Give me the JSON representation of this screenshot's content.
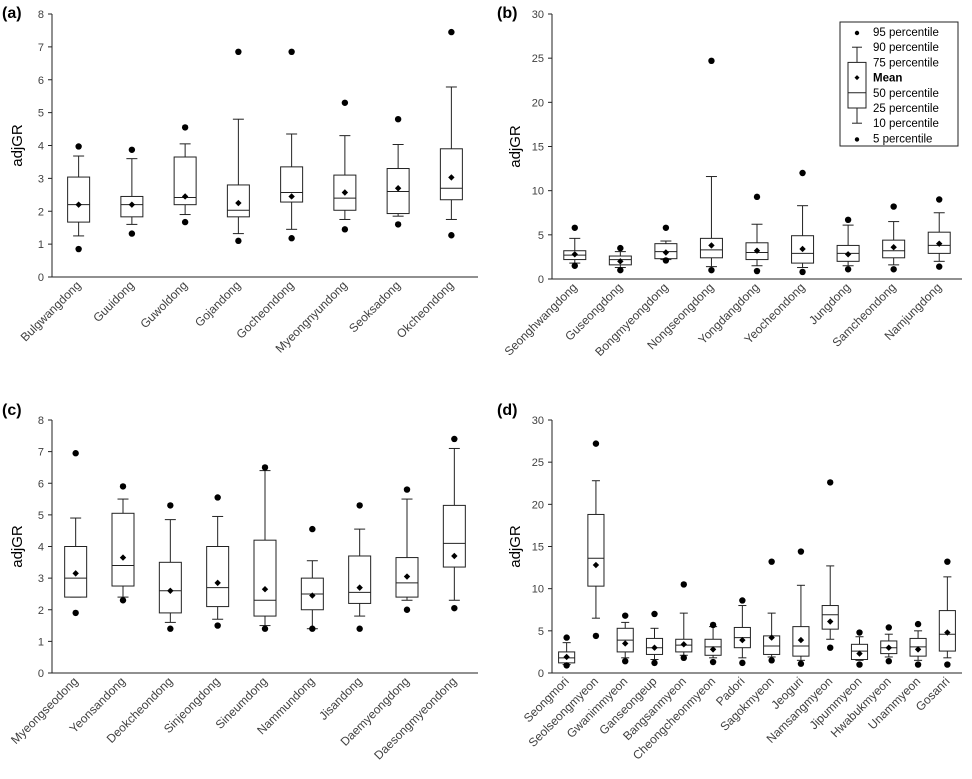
{
  "chart_data": [
    {
      "type": "box",
      "panel_label": "(a)",
      "ylabel": "adjGR",
      "ylim": [
        0,
        8
      ],
      "yticks": [
        0,
        1,
        2,
        3,
        4,
        5,
        6,
        7,
        8
      ],
      "categories": [
        "Bulgwangdong",
        "Guuidong",
        "Guwoldong",
        "Gojandong",
        "Gocheondong",
        "Myeongnyundong",
        "Seoksadong",
        "Okcheondong"
      ],
      "series": [
        {
          "category": "Bulgwangdong",
          "p5": 0.85,
          "p10": 1.25,
          "p25": 1.67,
          "median": 2.2,
          "p75": 3.04,
          "p90": 3.68,
          "p95": 3.97,
          "mean": 2.2
        },
        {
          "category": "Guuidong",
          "p5": 1.32,
          "p10": 1.6,
          "p25": 1.83,
          "median": 2.2,
          "p75": 2.45,
          "p90": 3.6,
          "p95": 3.87,
          "mean": 2.2
        },
        {
          "category": "Guwoldong",
          "p5": 1.67,
          "p10": 1.9,
          "p25": 2.2,
          "median": 2.42,
          "p75": 3.65,
          "p90": 4.05,
          "p95": 4.55,
          "mean": 2.45
        },
        {
          "category": "Gojandong",
          "p5": 1.1,
          "p10": 1.32,
          "p25": 1.83,
          "median": 2.03,
          "p75": 2.8,
          "p90": 4.8,
          "p95": 6.85,
          "mean": 2.25
        },
        {
          "category": "Gocheondong",
          "p5": 1.18,
          "p10": 1.45,
          "p25": 2.28,
          "median": 2.57,
          "p75": 3.35,
          "p90": 4.35,
          "p95": 6.85,
          "mean": 2.45
        },
        {
          "category": "Myeongnyundong",
          "p5": 1.45,
          "p10": 1.75,
          "p25": 2.03,
          "median": 2.4,
          "p75": 3.1,
          "p90": 4.3,
          "p95": 5.3,
          "mean": 2.57
        },
        {
          "category": "Seoksadong",
          "p5": 1.6,
          "p10": 1.85,
          "p25": 1.93,
          "median": 2.6,
          "p75": 3.3,
          "p90": 4.03,
          "p95": 4.8,
          "mean": 2.7
        },
        {
          "category": "Okcheondong",
          "p5": 1.27,
          "p10": 1.75,
          "p25": 2.35,
          "median": 2.7,
          "p75": 3.9,
          "p90": 5.78,
          "p95": 7.45,
          "mean": 3.03
        }
      ]
    },
    {
      "type": "box",
      "panel_label": "(b)",
      "ylabel": "adjGR",
      "ylim": [
        0,
        30
      ],
      "yticks": [
        0,
        5,
        10,
        15,
        20,
        25,
        30
      ],
      "categories": [
        "Seonghwangdong",
        "Guseongdong",
        "Bongmyeongdong",
        "Nongseongdong",
        "Yongdangdong",
        "Yeocheondong",
        "Jungdong",
        "Samcheondong",
        "Namjungdong"
      ],
      "series": [
        {
          "category": "Seonghwangdong",
          "p5": 1.5,
          "p10": 1.8,
          "p25": 2.2,
          "median": 2.7,
          "p75": 3.2,
          "p90": 4.6,
          "p95": 5.8,
          "mean": 2.8
        },
        {
          "category": "Guseongdong",
          "p5": 1.0,
          "p10": 1.3,
          "p25": 1.6,
          "median": 2.2,
          "p75": 2.6,
          "p90": 3.1,
          "p95": 3.5,
          "mean": 2.0
        },
        {
          "category": "Bongmyeongdong",
          "p5": 2.1,
          "p10": 2.2,
          "p25": 2.3,
          "median": 3.1,
          "p75": 4.0,
          "p90": 4.3,
          "p95": 5.8,
          "mean": 3.0
        },
        {
          "category": "Nongseongdong",
          "p5": 1.0,
          "p10": 1.4,
          "p25": 2.4,
          "median": 3.3,
          "p75": 4.6,
          "p90": 11.6,
          "p95": 24.7,
          "mean": 3.8
        },
        {
          "category": "Yongdangdong",
          "p5": 0.9,
          "p10": 1.5,
          "p25": 2.2,
          "median": 3.0,
          "p75": 4.1,
          "p90": 6.2,
          "p95": 9.3,
          "mean": 3.2
        },
        {
          "category": "Yeocheondong",
          "p5": 0.8,
          "p10": 1.3,
          "p25": 1.8,
          "median": 2.9,
          "p75": 4.9,
          "p90": 8.3,
          "p95": 12.0,
          "mean": 3.4
        },
        {
          "category": "Jungdong",
          "p5": 1.1,
          "p10": 1.5,
          "p25": 2.0,
          "median": 2.9,
          "p75": 3.8,
          "p90": 6.1,
          "p95": 6.7,
          "mean": 2.8
        },
        {
          "category": "Samcheondong",
          "p5": 1.1,
          "p10": 1.6,
          "p25": 2.4,
          "median": 3.2,
          "p75": 4.4,
          "p90": 6.5,
          "p95": 8.2,
          "mean": 3.6
        },
        {
          "category": "Namjungdong",
          "p5": 1.4,
          "p10": 2.0,
          "p25": 2.9,
          "median": 3.8,
          "p75": 5.3,
          "p90": 7.5,
          "p95": 9.0,
          "mean": 4.0
        }
      ],
      "legend": {
        "position": "top-right",
        "entries": [
          "95 percentile",
          "90 percentile",
          "75 percentile",
          "Mean",
          "50 percentile",
          "25 percentile",
          "10 percentile",
          "5 percentile"
        ]
      }
    },
    {
      "type": "box",
      "panel_label": "(c)",
      "ylabel": "adjGR",
      "ylim": [
        0,
        8
      ],
      "yticks": [
        0,
        1,
        2,
        3,
        4,
        5,
        6,
        7,
        8
      ],
      "categories": [
        "Myeongseodong",
        "Yeonsandong",
        "Deokcheondong",
        "Sinjeongdong",
        "Sineumdong",
        "Nammundong",
        "Jisandong",
        "Daemyeongdong",
        "Daesongmyeondong"
      ],
      "series": [
        {
          "category": "Myeongseodong",
          "p5": 1.9,
          "p10": 2.4,
          "p25": 2.4,
          "median": 3.0,
          "p75": 4.0,
          "p90": 4.9,
          "p95": 6.95,
          "mean": 3.15
        },
        {
          "category": "Yeonsandong",
          "p5": 2.3,
          "p10": 2.4,
          "p25": 2.75,
          "median": 3.4,
          "p75": 5.05,
          "p90": 5.5,
          "p95": 5.9,
          "mean": 3.65
        },
        {
          "category": "Deokcheondong",
          "p5": 1.4,
          "p10": 1.6,
          "p25": 1.9,
          "median": 2.6,
          "p75": 3.5,
          "p90": 4.85,
          "p95": 5.3,
          "mean": 2.6
        },
        {
          "category": "Sinjeongdong",
          "p5": 1.5,
          "p10": 1.7,
          "p25": 2.1,
          "median": 2.7,
          "p75": 4.0,
          "p90": 4.95,
          "p95": 5.55,
          "mean": 2.85
        },
        {
          "category": "Sineumdong",
          "p5": 1.4,
          "p10": 1.5,
          "p25": 1.8,
          "median": 2.3,
          "p75": 4.2,
          "p90": 6.4,
          "p95": 6.5,
          "mean": 2.65
        },
        {
          "category": "Nammundong",
          "p5": 1.4,
          "p10": 1.4,
          "p25": 2.0,
          "median": 2.5,
          "p75": 3.0,
          "p90": 3.55,
          "p95": 4.55,
          "mean": 2.45
        },
        {
          "category": "Jisandong",
          "p5": 1.4,
          "p10": 1.8,
          "p25": 2.2,
          "median": 2.55,
          "p75": 3.7,
          "p90": 4.55,
          "p95": 5.3,
          "mean": 2.7
        },
        {
          "category": "Daemyeongdong",
          "p5": 2.0,
          "p10": 2.3,
          "p25": 2.4,
          "median": 2.85,
          "p75": 3.65,
          "p90": 5.5,
          "p95": 5.8,
          "mean": 3.05
        },
        {
          "category": "Daesongmyeondong",
          "p5": 2.05,
          "p10": 2.3,
          "p25": 3.35,
          "median": 4.1,
          "p75": 5.3,
          "p90": 7.1,
          "p95": 7.4,
          "mean": 3.7
        }
      ]
    },
    {
      "type": "box",
      "panel_label": "(d)",
      "ylabel": "adjGR",
      "ylim": [
        0,
        30
      ],
      "yticks": [
        0,
        5,
        10,
        15,
        20,
        25,
        30
      ],
      "categories": [
        "Seongmori",
        "Seolseongmyeon",
        "Gwanimmyeon",
        "Ganseongeup",
        "Bangsanmyeon",
        "Cheongcheonmyeon",
        "Padori",
        "Sagokmyeon",
        "Jeoguri",
        "Namsangmyeon",
        "Jipummyeon",
        "Hwabukmyeon",
        "Unammyeon",
        "Gosanri"
      ],
      "series": [
        {
          "category": "Seongmori",
          "p5": 0.9,
          "p10": 1.0,
          "p25": 1.2,
          "median": 1.8,
          "p75": 2.5,
          "p90": 3.6,
          "p95": 4.2,
          "mean": 1.9
        },
        {
          "category": "Seolseongmyeon",
          "p5": 4.4,
          "p10": 6.5,
          "p25": 10.3,
          "median": 13.6,
          "p75": 18.8,
          "p90": 22.8,
          "p95": 27.2,
          "mean": 12.8
        },
        {
          "category": "Gwanimmyeon",
          "p5": 1.4,
          "p10": 1.8,
          "p25": 2.5,
          "median": 3.9,
          "p75": 5.3,
          "p90": 6.0,
          "p95": 6.8,
          "mean": 3.5
        },
        {
          "category": "Ganseongeup",
          "p5": 1.2,
          "p10": 1.6,
          "p25": 2.2,
          "median": 3.0,
          "p75": 4.1,
          "p90": 5.3,
          "p95": 7.0,
          "mean": 3.0
        },
        {
          "category": "Bangsanmyeon",
          "p5": 1.8,
          "p10": 2.1,
          "p25": 2.5,
          "median": 3.3,
          "p75": 4.0,
          "p90": 7.1,
          "p95": 10.5,
          "mean": 3.4
        },
        {
          "category": "Cheongcheonmyeon",
          "p5": 1.3,
          "p10": 1.8,
          "p25": 2.1,
          "median": 3.1,
          "p75": 4.0,
          "p90": 5.5,
          "p95": 5.7,
          "mean": 2.8
        },
        {
          "category": "Padori",
          "p5": 1.2,
          "p10": 1.8,
          "p25": 3.0,
          "median": 4.2,
          "p75": 5.4,
          "p90": 8.0,
          "p95": 8.6,
          "mean": 3.9
        },
        {
          "category": "Sagokmyeon",
          "p5": 1.5,
          "p10": 1.9,
          "p25": 2.2,
          "median": 3.2,
          "p75": 4.4,
          "p90": 7.1,
          "p95": 13.2,
          "mean": 4.2
        },
        {
          "category": "Jeoguri",
          "p5": 1.1,
          "p10": 1.5,
          "p25": 2.0,
          "median": 3.2,
          "p75": 5.5,
          "p90": 10.4,
          "p95": 14.4,
          "mean": 3.9
        },
        {
          "category": "Namsangmyeon",
          "p5": 3.0,
          "p10": 4.0,
          "p25": 5.2,
          "median": 6.9,
          "p75": 8.0,
          "p90": 12.7,
          "p95": 22.6,
          "mean": 6.1
        },
        {
          "category": "Jipummyeon",
          "p5": 1.0,
          "p10": 1.5,
          "p25": 1.6,
          "median": 2.6,
          "p75": 3.4,
          "p90": 4.3,
          "p95": 4.8,
          "mean": 2.3
        },
        {
          "category": "Hwabukmyeon",
          "p5": 1.4,
          "p10": 1.9,
          "p25": 2.3,
          "median": 3.0,
          "p75": 3.8,
          "p90": 4.6,
          "p95": 5.4,
          "mean": 3.0
        },
        {
          "category": "Unammyeon",
          "p5": 1.0,
          "p10": 1.5,
          "p25": 2.0,
          "median": 3.1,
          "p75": 4.1,
          "p90": 5.0,
          "p95": 5.8,
          "mean": 2.8
        },
        {
          "category": "Gosanri",
          "p5": 1.0,
          "p10": 1.8,
          "p25": 2.6,
          "median": 4.6,
          "p75": 7.4,
          "p90": 11.4,
          "p95": 13.2,
          "mean": 4.8
        }
      ]
    }
  ]
}
